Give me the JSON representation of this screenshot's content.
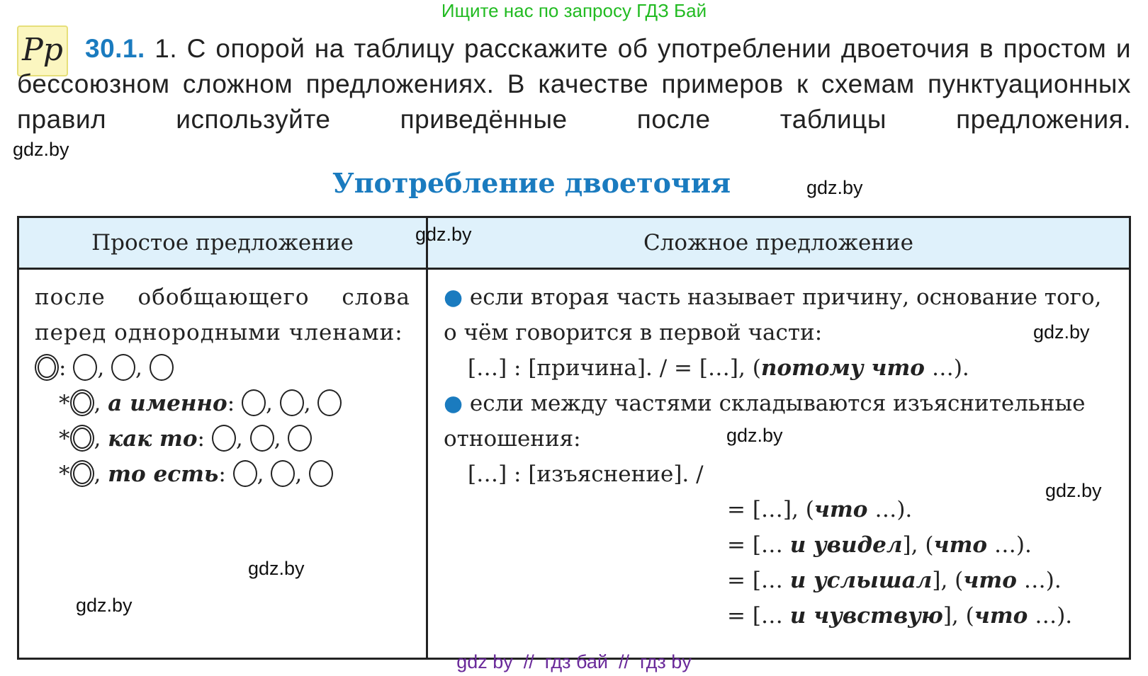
{
  "banner": "Ищите нас по запросу ГДЗ Бай",
  "logo": "Рр",
  "task": {
    "number": "30.1.",
    "text": "1. С опорой на таблицу расскажите об употреблении двоеточия в простом и бессоюзном сложном предложениях. В качестве примеров к схемам пунктуационных правил используйте приведённые после таблицы предложения."
  },
  "title": "Употребление двоеточия",
  "watermark": "gdz.by",
  "table": {
    "headers": [
      "Простое предложение",
      "Сложное предложение"
    ],
    "simple": {
      "rule": "после обобщающего слова перед однородными членами:",
      "schemes": [
        {
          "prefix": "",
          "word": ""
        },
        {
          "prefix": "*",
          "word": "а именно"
        },
        {
          "prefix": "*",
          "word": "как то"
        },
        {
          "prefix": "*",
          "word": "то есть"
        }
      ]
    },
    "complex": {
      "rule1": "если вторая часть называет причину, основание того, о чём говорится в первой части:",
      "scheme1a": "[…] : [причина]. / = […], (",
      "scheme1b": "потому что",
      "scheme1c": " …).",
      "rule2": "если между частями складываются изъяснительные отношения:",
      "scheme2": "[…] : [изъяснение]. /",
      "variants": [
        {
          "a": "= […], (",
          "b": "",
          "c": "что",
          "d": " …)."
        },
        {
          "a": "= [… ",
          "b": "и увидел",
          "c": "что",
          "d": " …)."
        },
        {
          "a": "= [… ",
          "b": "и услышал",
          "c": "что",
          "d": " …)."
        },
        {
          "a": "= [… ",
          "b": "и чувствую",
          "c": "что",
          "d": " …)."
        }
      ]
    }
  },
  "footer": "gdz by  //  гдз бай  //  гдз by",
  "colors": {
    "accent": "#1a7bbf",
    "header_bg": "#dff1fb",
    "banner": "#22bb22",
    "footer": "#6a2a9a"
  }
}
